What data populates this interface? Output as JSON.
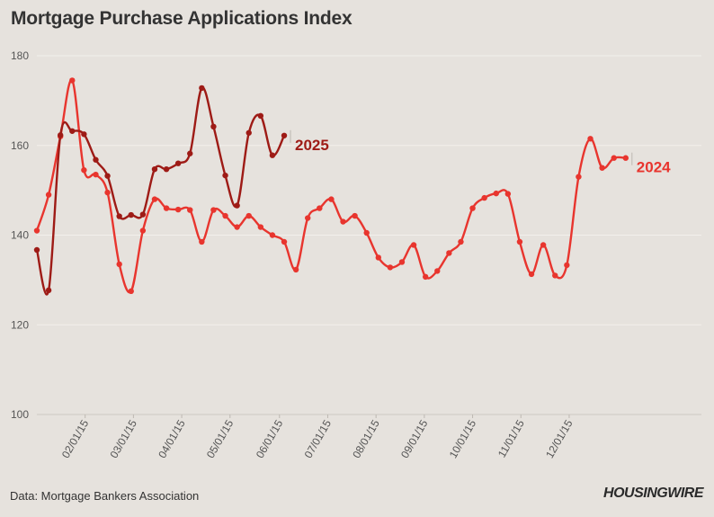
{
  "title": "Mortgage Purchase Applications Index",
  "source": "Data: Mortgage Bankers Association",
  "brand": "HOUSINGWIRE",
  "chart_data": {
    "type": "line",
    "title": "Mortgage Purchase Applications Index",
    "xlabel": "",
    "ylabel": "",
    "ylim": [
      100,
      180
    ],
    "yticks": [
      100,
      120,
      140,
      160,
      180
    ],
    "xlim": [
      0,
      52
    ],
    "xticks": [
      {
        "label": "02/01/15",
        "week": 4.1
      },
      {
        "label": "03/01/15",
        "week": 8.2
      },
      {
        "label": "04/01/15",
        "week": 12.3
      },
      {
        "label": "05/01/15",
        "week": 16.4
      },
      {
        "label": "06/01/15",
        "week": 20.6
      },
      {
        "label": "07/01/15",
        "week": 24.7
      },
      {
        "label": "08/01/15",
        "week": 28.8
      },
      {
        "label": "09/01/15",
        "week": 32.9
      },
      {
        "label": "10/01/15",
        "week": 37.0
      },
      {
        "label": "11/01/15",
        "week": 41.1
      },
      {
        "label": "12/01/15",
        "week": 45.2
      }
    ],
    "grid": true,
    "series": [
      {
        "name": "2024",
        "color": "#e8352e",
        "values": [
          141,
          149,
          162,
          174.5,
          154.5,
          153.5,
          149.5,
          133.5,
          127.5,
          141,
          148,
          146,
          145.7,
          145.6,
          138.5,
          145.6,
          144.3,
          141.8,
          144.3,
          141.8,
          140,
          138.5,
          132.3,
          143.8,
          146,
          148,
          143,
          144.3,
          140.5,
          135,
          132.8,
          134,
          137.8,
          130.7,
          132,
          136,
          138.5,
          146,
          148.3,
          149.3,
          149.2,
          138.5,
          131.3,
          137.8,
          131,
          133.3,
          153,
          161.5,
          155,
          157.2,
          157.2
        ]
      },
      {
        "name": "2025",
        "color": "#9e1b16",
        "values": [
          136.7,
          127.7,
          162.3,
          163.2,
          162.5,
          156.8,
          153.2,
          144.2,
          144.5,
          144.6,
          154.7,
          154.7,
          156,
          158.2,
          172.8,
          164.2,
          153.3,
          146.6,
          162.8,
          166.6,
          157.8,
          162.2
        ]
      }
    ]
  }
}
